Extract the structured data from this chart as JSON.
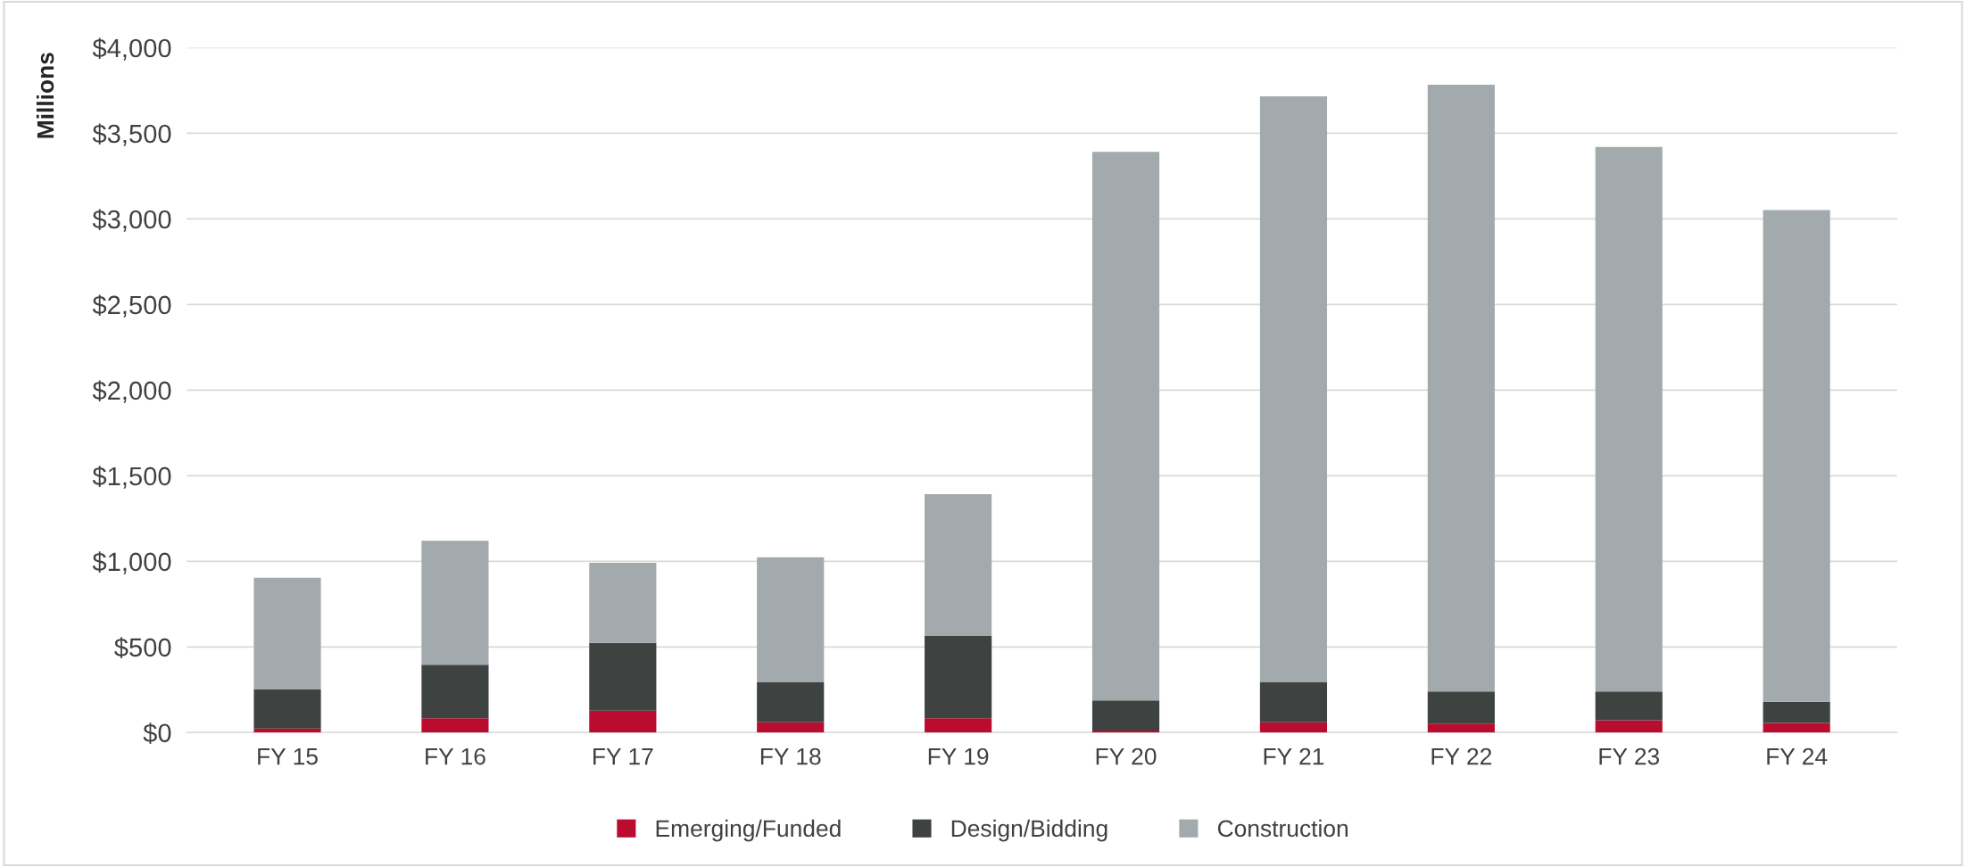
{
  "chart_data": {
    "type": "bar",
    "stacked": true,
    "ylabel": "Millions",
    "categories": [
      "FY 15",
      "FY 16",
      "FY 17",
      "FY 18",
      "FY 19",
      "FY 20",
      "FY 21",
      "FY 22",
      "FY 23",
      "FY 24"
    ],
    "series": [
      {
        "name": "Emerging/Funded",
        "color": "#ba0c2f",
        "values": [
          24,
          84,
          128,
          60,
          84,
          12,
          60,
          52,
          72,
          56
        ]
      },
      {
        "name": "Design/Bidding",
        "color": "#3e4241",
        "values": [
          228,
          312,
          396,
          236,
          480,
          176,
          236,
          188,
          168,
          124
        ]
      },
      {
        "name": "Construction",
        "color": "#a2aaad",
        "values": [
          652,
          724,
          468,
          728,
          828,
          3204,
          3420,
          3544,
          3180,
          2872
        ]
      }
    ],
    "ylim": [
      0,
      4000
    ],
    "yticks": [
      {
        "value": 0,
        "label": "$0"
      },
      {
        "value": 500,
        "label": "$500"
      },
      {
        "value": 1000,
        "label": "$1,000"
      },
      {
        "value": 1500,
        "label": "$1,500"
      },
      {
        "value": 2000,
        "label": "$2,000"
      },
      {
        "value": 2500,
        "label": "$2,500"
      },
      {
        "value": 3000,
        "label": "$3,000"
      },
      {
        "value": 3500,
        "label": "$3,500"
      },
      {
        "value": 4000,
        "label": "$4,000"
      }
    ],
    "grid": "y",
    "legend": "bottom"
  }
}
